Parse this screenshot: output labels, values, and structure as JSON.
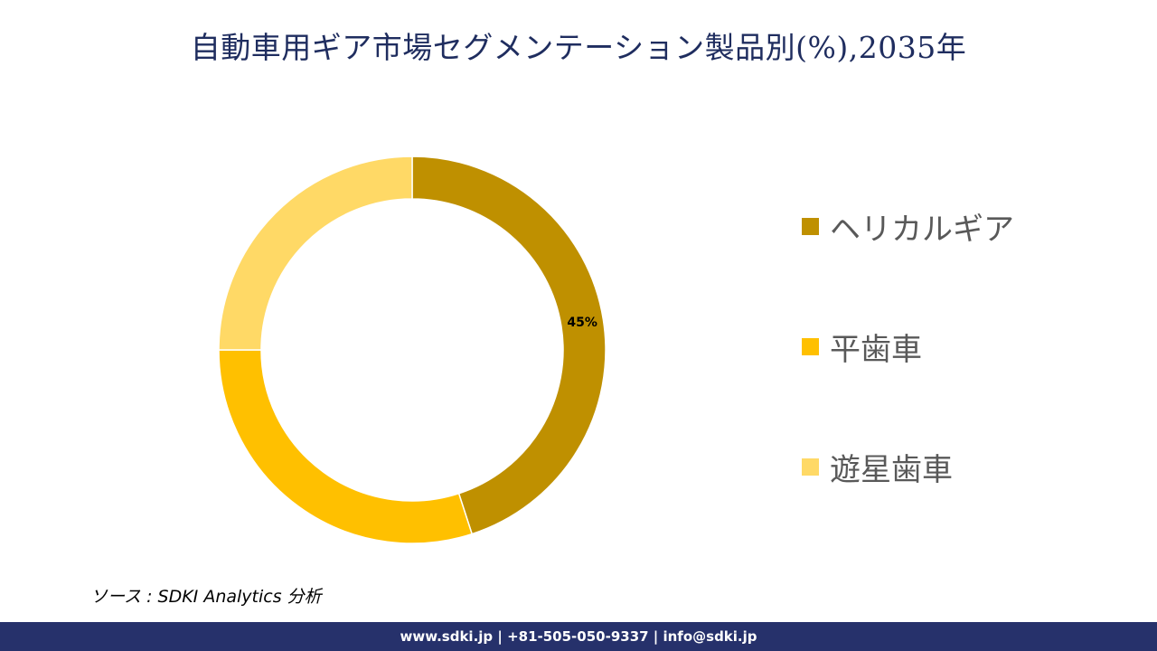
{
  "title": "自動車用ギア市場セグメンテーション製品別(%),2035年",
  "source": "ソース : SDKI Analytics 分析",
  "footer": "www.sdki.jp | +81-505-050-9337 | info@sdki.jp",
  "colors": {
    "title": "#1f2d5f",
    "footer_bg": "#26316b"
  },
  "chart_data": {
    "type": "pie",
    "donut": true,
    "categories": [
      "ヘリカルギア",
      "平歯車",
      "遊星歯車"
    ],
    "values": [
      45,
      30,
      25
    ],
    "value_labels": [
      "45%",
      "",
      ""
    ],
    "colors": [
      "#bf9000",
      "#ffc000",
      "#ffd966"
    ],
    "legend_position": "right"
  }
}
